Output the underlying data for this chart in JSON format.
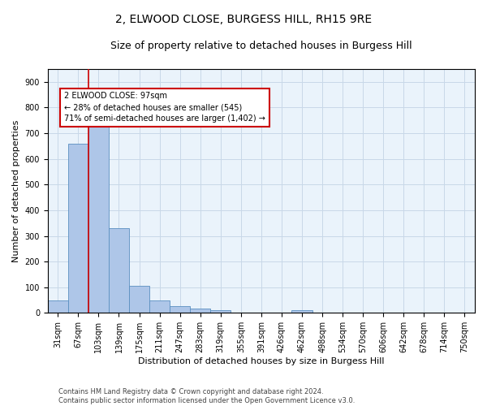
{
  "title1": "2, ELWOOD CLOSE, BURGESS HILL, RH15 9RE",
  "title2": "Size of property relative to detached houses in Burgess Hill",
  "xlabel": "Distribution of detached houses by size in Burgess Hill",
  "ylabel": "Number of detached properties",
  "categories": [
    "31sqm",
    "67sqm",
    "103sqm",
    "139sqm",
    "175sqm",
    "211sqm",
    "247sqm",
    "283sqm",
    "319sqm",
    "355sqm",
    "391sqm",
    "426sqm",
    "462sqm",
    "498sqm",
    "534sqm",
    "570sqm",
    "606sqm",
    "642sqm",
    "678sqm",
    "714sqm",
    "750sqm"
  ],
  "values": [
    50,
    660,
    745,
    330,
    105,
    50,
    25,
    17,
    12,
    0,
    0,
    0,
    10,
    0,
    0,
    0,
    0,
    0,
    0,
    0,
    0
  ],
  "bar_color": "#aec6e8",
  "bar_edge_color": "#5a8fc0",
  "vline_x_index": 1.5,
  "annotation_text": "2 ELWOOD CLOSE: 97sqm\n← 28% of detached houses are smaller (545)\n71% of semi-detached houses are larger (1,402) →",
  "annotation_box_color": "#ffffff",
  "annotation_box_edge": "#cc0000",
  "vline_color": "#cc0000",
  "grid_color": "#c8d8e8",
  "background_color": "#eaf3fb",
  "footer": "Contains HM Land Registry data © Crown copyright and database right 2024.\nContains public sector information licensed under the Open Government Licence v3.0.",
  "ylim": [
    0,
    950
  ],
  "title1_fontsize": 10,
  "title2_fontsize": 9,
  "ylabel_fontsize": 8,
  "xlabel_fontsize": 8,
  "tick_fontsize": 7,
  "footer_fontsize": 6
}
